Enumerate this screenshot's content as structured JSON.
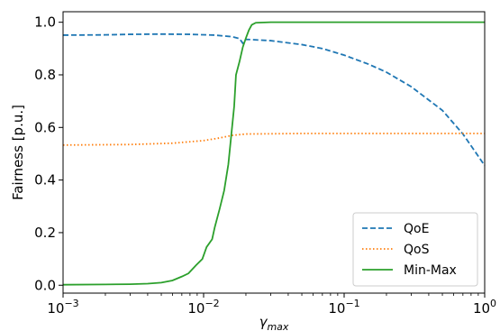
{
  "chart_data": {
    "type": "line",
    "xscale": "log",
    "xlim": [
      0.001,
      1
    ],
    "ylim": [
      -0.03,
      1.04
    ],
    "xlabel": "γ",
    "xlabel_sub": "max",
    "ylabel": "Fairness [p.u.]",
    "xticks": [
      {
        "value": 0.001,
        "base": "10",
        "exp": "−3"
      },
      {
        "value": 0.01,
        "base": "10",
        "exp": "−2"
      },
      {
        "value": 0.1,
        "base": "10",
        "exp": "−1"
      },
      {
        "value": 1,
        "base": "10",
        "exp": "0"
      }
    ],
    "yticks": [
      {
        "value": 0.0,
        "label": "0.0"
      },
      {
        "value": 0.2,
        "label": "0.2"
      },
      {
        "value": 0.4,
        "label": "0.4"
      },
      {
        "value": 0.6,
        "label": "0.6"
      },
      {
        "value": 0.8,
        "label": "0.8"
      },
      {
        "value": 1.0,
        "label": "1.0"
      }
    ],
    "grid": false,
    "legend_position": "lower-right",
    "series": [
      {
        "name": "QoE",
        "color": "#1f77b4",
        "style": "dashed",
        "points": [
          [
            0.001,
            0.951
          ],
          [
            0.002,
            0.952
          ],
          [
            0.003,
            0.954
          ],
          [
            0.005,
            0.955
          ],
          [
            0.008,
            0.954
          ],
          [
            0.012,
            0.951
          ],
          [
            0.016,
            0.945
          ],
          [
            0.018,
            0.938
          ],
          [
            0.019,
            0.92
          ],
          [
            0.02,
            0.935
          ],
          [
            0.03,
            0.93
          ],
          [
            0.05,
            0.915
          ],
          [
            0.07,
            0.9
          ],
          [
            0.1,
            0.875
          ],
          [
            0.15,
            0.84
          ],
          [
            0.2,
            0.81
          ],
          [
            0.3,
            0.755
          ],
          [
            0.5,
            0.665
          ],
          [
            0.7,
            0.575
          ],
          [
            0.85,
            0.51
          ],
          [
            1,
            0.455
          ]
        ]
      },
      {
        "name": "QoS",
        "color": "#ff7f0e",
        "style": "dotted",
        "points": [
          [
            0.001,
            0.533
          ],
          [
            0.003,
            0.535
          ],
          [
            0.006,
            0.54
          ],
          [
            0.01,
            0.55
          ],
          [
            0.013,
            0.56
          ],
          [
            0.016,
            0.57
          ],
          [
            0.02,
            0.575
          ],
          [
            0.05,
            0.577
          ],
          [
            0.1,
            0.577
          ],
          [
            0.3,
            0.577
          ],
          [
            1,
            0.577
          ]
        ]
      },
      {
        "name": "Min-Max",
        "color": "#2ca02c",
        "style": "solid",
        "points": [
          [
            0.001,
            0.002
          ],
          [
            0.002,
            0.003
          ],
          [
            0.003,
            0.004
          ],
          [
            0.004,
            0.006
          ],
          [
            0.005,
            0.01
          ],
          [
            0.006,
            0.018
          ],
          [
            0.007,
            0.033
          ],
          [
            0.0078,
            0.045
          ],
          [
            0.0088,
            0.075
          ],
          [
            0.0098,
            0.1
          ],
          [
            0.0105,
            0.145
          ],
          [
            0.0115,
            0.175
          ],
          [
            0.012,
            0.22
          ],
          [
            0.013,
            0.29
          ],
          [
            0.014,
            0.36
          ],
          [
            0.015,
            0.46
          ],
          [
            0.0158,
            0.58
          ],
          [
            0.0165,
            0.68
          ],
          [
            0.017,
            0.8
          ],
          [
            0.018,
            0.85
          ],
          [
            0.019,
            0.905
          ],
          [
            0.02,
            0.94
          ],
          [
            0.021,
            0.97
          ],
          [
            0.022,
            0.99
          ],
          [
            0.0235,
            0.998
          ],
          [
            0.03,
            1.0
          ],
          [
            0.1,
            1.0
          ],
          [
            1,
            1.0
          ]
        ]
      }
    ]
  }
}
